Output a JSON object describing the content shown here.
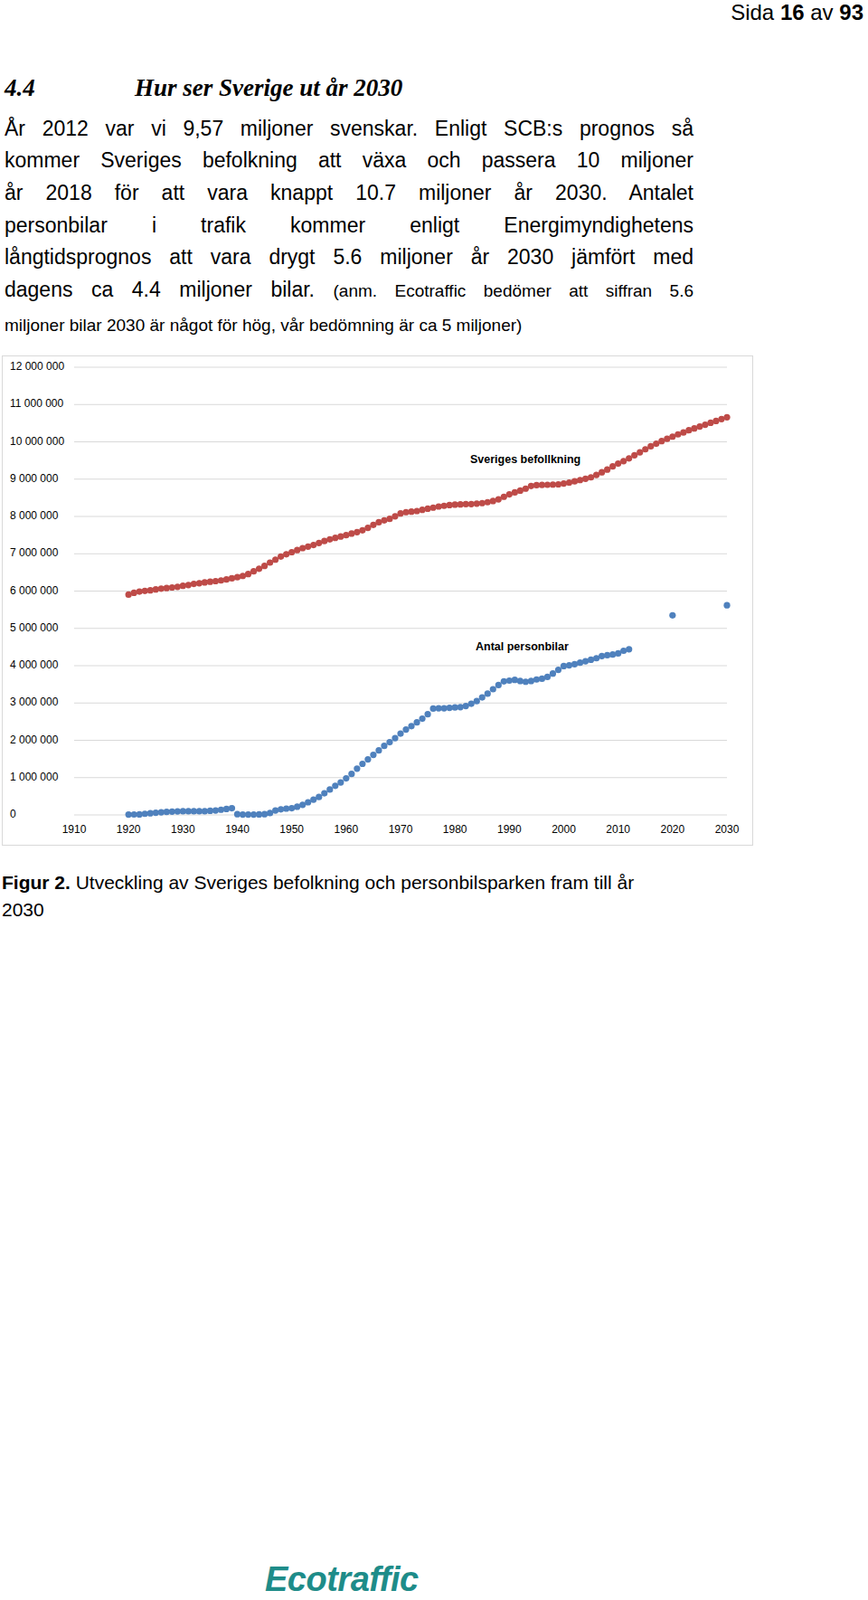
{
  "header": {
    "prefix": "Sida",
    "page": "16",
    "separator": "av",
    "total": "93"
  },
  "heading": {
    "number": "4.4",
    "title": "Hur ser Sverige ut år 2030"
  },
  "body": {
    "lines": [
      "År 2012 var vi 9,57 miljoner svenskar. Enligt SCB:s prognos så",
      "kommer Sveriges befolkning att växa och passera 10 miljoner",
      "år 2018 för att vara knappt 10.7 miljoner år 2030. Antalet",
      "personbilar i trafik kommer enligt Energimyndighetens",
      "långtidsprognos att vara drygt 5.6 miljoner år 2030 jämfört med",
      "dagens ca 4.4 miljoner bilar."
    ],
    "note_lines": [
      "(anm. Ecotraffic bedömer att siffran 5.6",
      "miljoner bilar 2030 är något för hög, vår bedömning är ca 5 miljoner)"
    ]
  },
  "chart_data": {
    "type": "scatter",
    "marker": "circle",
    "grid": true,
    "xlim": [
      1910,
      2030
    ],
    "xticks": [
      1910,
      1920,
      1930,
      1940,
      1950,
      1960,
      1970,
      1980,
      1990,
      2000,
      2010,
      2020,
      2030
    ],
    "ylim": [
      0,
      12000000
    ],
    "yticks": [
      0,
      {
        "value": 1000000,
        "label": "1 000 000"
      },
      {
        "value": 2000000,
        "label": "2 000 000"
      },
      {
        "value": 3000000,
        "label": "3 000 000"
      },
      {
        "value": 4000000,
        "label": "4 000 000"
      },
      {
        "value": 5000000,
        "label": "5 000 000"
      },
      {
        "value": 6000000,
        "label": "6 000 000"
      },
      {
        "value": 7000000,
        "label": "7 000 000"
      },
      {
        "value": 8000000,
        "label": "8 000 000"
      },
      {
        "value": 9000000,
        "label": "9 000 000"
      },
      {
        "value": 10000000,
        "label": "10 000 000"
      },
      {
        "value": 11000000,
        "label": "11 000 000"
      },
      {
        "value": 12000000,
        "label": "12 000 000"
      }
    ],
    "series": [
      {
        "name": "Sveriges befollkning",
        "color": "#be4b48",
        "x": [
          1920,
          1921,
          1922,
          1923,
          1924,
          1925,
          1926,
          1927,
          1928,
          1929,
          1930,
          1931,
          1932,
          1933,
          1934,
          1935,
          1936,
          1937,
          1938,
          1939,
          1940,
          1941,
          1942,
          1943,
          1944,
          1945,
          1946,
          1947,
          1948,
          1949,
          1950,
          1951,
          1952,
          1953,
          1954,
          1955,
          1956,
          1957,
          1958,
          1959,
          1960,
          1961,
          1962,
          1963,
          1964,
          1965,
          1966,
          1967,
          1968,
          1969,
          1970,
          1971,
          1972,
          1973,
          1974,
          1975,
          1976,
          1977,
          1978,
          1979,
          1980,
          1981,
          1982,
          1983,
          1984,
          1985,
          1986,
          1987,
          1988,
          1989,
          1990,
          1991,
          1992,
          1993,
          1994,
          1995,
          1996,
          1997,
          1998,
          1999,
          2000,
          2001,
          2002,
          2003,
          2004,
          2005,
          2006,
          2007,
          2008,
          2009,
          2010,
          2011,
          2012,
          2013,
          2014,
          2015,
          2016,
          2017,
          2018,
          2019,
          2020,
          2021,
          2022,
          2023,
          2024,
          2025,
          2026,
          2027,
          2028,
          2029,
          2030
        ],
        "values": [
          5905000,
          5954000,
          5987000,
          6005000,
          6020000,
          6045000,
          6064000,
          6081000,
          6097000,
          6113000,
          6142000,
          6163000,
          6191000,
          6211000,
          6233000,
          6251000,
          6267000,
          6285000,
          6310000,
          6341000,
          6371000,
          6406000,
          6456000,
          6530000,
          6598000,
          6674000,
          6764000,
          6842000,
          6925000,
          6987000,
          7042000,
          7099000,
          7151000,
          7192000,
          7235000,
          7290000,
          7341000,
          7385000,
          7427000,
          7463000,
          7498000,
          7542000,
          7581000,
          7628000,
          7695000,
          7773000,
          7844000,
          7894000,
          7935000,
          8004000,
          8081000,
          8115000,
          8129000,
          8145000,
          8177000,
          8208000,
          8236000,
          8267000,
          8285000,
          8304000,
          8318000,
          8324000,
          8328000,
          8331000,
          8343000,
          8358000,
          8382000,
          8415000,
          8459000,
          8527000,
          8591000,
          8644000,
          8692000,
          8745000,
          8816000,
          8837000,
          8844000,
          8848000,
          8854000,
          8861000,
          8883000,
          8909000,
          8941000,
          8976000,
          9011000,
          9048000,
          9113000,
          9183000,
          9256000,
          9341000,
          9416000,
          9483000,
          9556000,
          9640000,
          9720000,
          9800000,
          9880000,
          9950000,
          10020000,
          10080000,
          10140000,
          10200000,
          10250000,
          10310000,
          10360000,
          10410000,
          10460000,
          10510000,
          10560000,
          10610000,
          10660000
        ]
      },
      {
        "name": "Antal personbilar",
        "color": "#4f81bd",
        "x": [
          1920,
          1921,
          1922,
          1923,
          1924,
          1925,
          1926,
          1927,
          1928,
          1929,
          1930,
          1931,
          1932,
          1933,
          1934,
          1935,
          1936,
          1937,
          1938,
          1939,
          1940,
          1941,
          1942,
          1943,
          1944,
          1945,
          1946,
          1947,
          1948,
          1949,
          1950,
          1951,
          1952,
          1953,
          1954,
          1955,
          1956,
          1957,
          1958,
          1959,
          1960,
          1961,
          1962,
          1963,
          1964,
          1965,
          1966,
          1967,
          1968,
          1969,
          1970,
          1971,
          1972,
          1973,
          1974,
          1975,
          1976,
          1977,
          1978,
          1979,
          1980,
          1981,
          1982,
          1983,
          1984,
          1985,
          1986,
          1987,
          1988,
          1989,
          1990,
          1991,
          1992,
          1993,
          1994,
          1995,
          1996,
          1997,
          1998,
          1999,
          2000,
          2001,
          2002,
          2003,
          2004,
          2005,
          2006,
          2007,
          2008,
          2009,
          2010,
          2011,
          2012,
          2020,
          2030
        ],
        "values": [
          10000,
          12000,
          15000,
          30000,
          45000,
          60000,
          70000,
          80000,
          90000,
          95000,
          100000,
          100000,
          100000,
          100000,
          100000,
          110000,
          120000,
          140000,
          160000,
          180000,
          20000,
          10000,
          10000,
          10000,
          15000,
          20000,
          50000,
          120000,
          150000,
          170000,
          180000,
          220000,
          270000,
          340000,
          410000,
          480000,
          580000,
          680000,
          780000,
          870000,
          980000,
          1100000,
          1240000,
          1370000,
          1490000,
          1610000,
          1730000,
          1850000,
          1950000,
          2060000,
          2180000,
          2290000,
          2380000,
          2480000,
          2580000,
          2700000,
          2850000,
          2860000,
          2860000,
          2870000,
          2880000,
          2890000,
          2920000,
          2980000,
          3050000,
          3150000,
          3250000,
          3370000,
          3480000,
          3580000,
          3600000,
          3620000,
          3590000,
          3570000,
          3590000,
          3630000,
          3650000,
          3700000,
          3790000,
          3890000,
          3990000,
          4010000,
          4040000,
          4080000,
          4120000,
          4160000,
          4200000,
          4260000,
          4280000,
          4300000,
          4330000,
          4400000,
          4440000,
          5350000,
          5620000
        ]
      }
    ]
  },
  "caption": {
    "label": "Figur 2.",
    "lines": [
      "Utveckling av Sveriges befolkning och personbilsparken fram till år",
      "2030"
    ]
  },
  "footer": {
    "logo": "Ecotraffic"
  }
}
